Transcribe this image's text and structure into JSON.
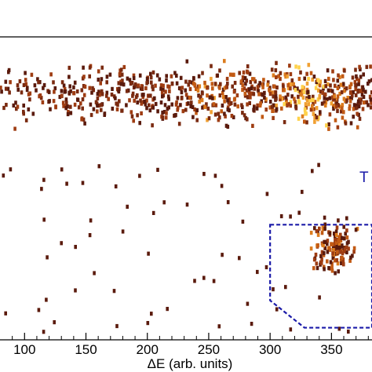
{
  "chart_data": {
    "type": "heatmap",
    "xlabel": "ΔE (arb. units)",
    "xlim": [
      80,
      383
    ],
    "ylim": [
      0,
      100
    ],
    "x_ticks": [
      100,
      150,
      200,
      250,
      300,
      350
    ],
    "x_tick_labels": [
      "100",
      "150",
      "200",
      "250",
      "300",
      "350"
    ],
    "grid": false,
    "legend": "none",
    "colormap": [
      "#5a1a0c",
      "#7a2a10",
      "#9e3c12",
      "#c25a14",
      "#dc7c1e",
      "#f0a032",
      "#ffd24a"
    ],
    "annotation": {
      "text": "T",
      "color": "#1a1aa8"
    },
    "gate": {
      "color": "#1a1aa8",
      "polygon": [
        [
          300,
          38
        ],
        [
          383,
          38
        ],
        [
          383,
          4
        ],
        [
          328,
          4
        ],
        [
          300,
          13
        ]
      ]
    },
    "bands": [
      {
        "x_range": [
          80,
          383
        ],
        "y_range": [
          70,
          92
        ],
        "density": "high"
      },
      {
        "x_range": [
          330,
          383
        ],
        "y_range": [
          22,
          38
        ],
        "density": "medium"
      },
      {
        "x_range": [
          80,
          383
        ],
        "y_range": [
          0,
          60
        ],
        "density": "low"
      }
    ]
  }
}
